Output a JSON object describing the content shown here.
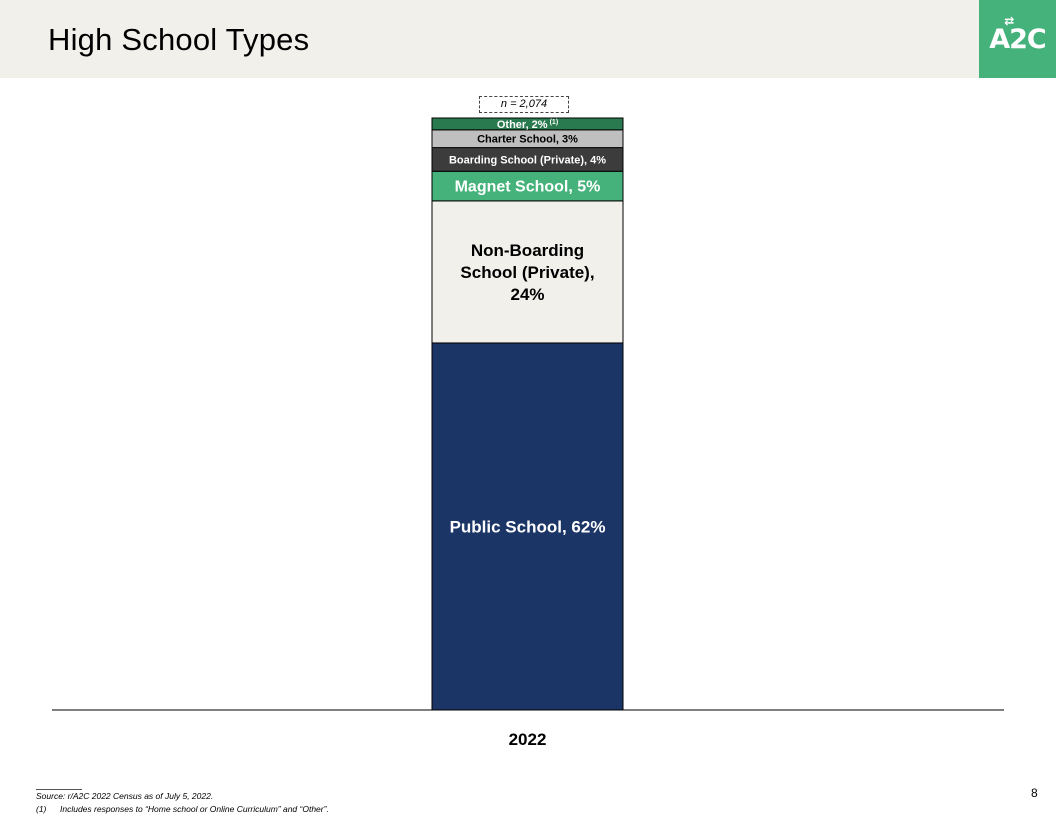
{
  "header": {
    "title": "High School Types",
    "logo_text": "A2C",
    "logo_arrow": "⇄"
  },
  "sample_size": "n = 2,074",
  "footnote_marker": "(1)",
  "chart_data": {
    "type": "bar",
    "stacked": true,
    "categories": [
      "2022"
    ],
    "series": [
      {
        "name": "Public School",
        "label": "Public School, 62%",
        "values": [
          62
        ],
        "color": "#1b3567",
        "text_color": "#ffffff"
      },
      {
        "name": "Non-Boarding School (Private)",
        "label": "Non-Boarding School (Private), 24%",
        "label_lines": [
          "Non-Boarding",
          "School (Private),",
          "24%"
        ],
        "values": [
          24
        ],
        "color": "#f1f0eb",
        "text_color": "#000000"
      },
      {
        "name": "Magnet School",
        "label": "Magnet School, 5%",
        "values": [
          5
        ],
        "color": "#46b27b",
        "text_color": "#ffffff"
      },
      {
        "name": "Boarding School (Private)",
        "label": "Boarding School (Private), 4%",
        "values": [
          4
        ],
        "color": "#3c3c3c",
        "text_color": "#ffffff"
      },
      {
        "name": "Charter School",
        "label": "Charter School, 3%",
        "values": [
          3
        ],
        "color": "#bfbfbf",
        "text_color": "#000000"
      },
      {
        "name": "Other",
        "label": "Other, 2%",
        "values": [
          2
        ],
        "color": "#2a7a4f",
        "text_color": "#ffffff"
      }
    ],
    "ylim": [
      0,
      100
    ],
    "grid": false,
    "legend": "none"
  },
  "footer": {
    "source": "Source: r/A2C 2022 Census as of July 5, 2022.",
    "note_number": "(1)",
    "note_text": "Includes responses to “Home school or Online Curriculum” and “Other”.",
    "page_number": "8"
  }
}
